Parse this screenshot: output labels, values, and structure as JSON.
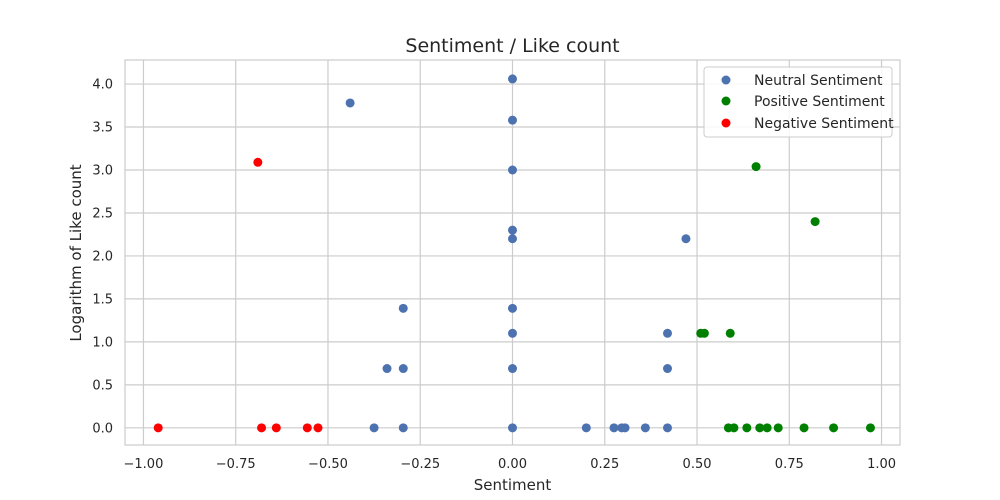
{
  "chart_data": {
    "type": "scatter",
    "title": "Sentiment / Like count",
    "xlabel": "Sentiment",
    "ylabel": "Logarithm of Like count",
    "xlim": [
      -1.05,
      1.05
    ],
    "ylim": [
      -0.2,
      4.28
    ],
    "grid": true,
    "legend_position": "top-right",
    "x_ticks": [
      -1.0,
      -0.75,
      -0.5,
      -0.25,
      0.0,
      0.25,
      0.5,
      0.75,
      1.0
    ],
    "x_tick_labels": [
      "−1.00",
      "−0.75",
      "−0.50",
      "−0.25",
      "0.00",
      "0.25",
      "0.50",
      "0.75",
      "1.00"
    ],
    "y_ticks": [
      0.0,
      0.5,
      1.0,
      1.5,
      2.0,
      2.5,
      3.0,
      3.5,
      4.0
    ],
    "y_tick_labels": [
      "0.0",
      "0.5",
      "1.0",
      "1.5",
      "2.0",
      "2.5",
      "3.0",
      "3.5",
      "4.0"
    ],
    "series": [
      {
        "name": "Neutral Sentiment",
        "color": "#4c72b0",
        "points": [
          [
            0.0,
            4.06
          ],
          [
            -0.44,
            3.78
          ],
          [
            0.0,
            3.58
          ],
          [
            0.0,
            3.0
          ],
          [
            0.0,
            2.3
          ],
          [
            0.0,
            2.2
          ],
          [
            0.47,
            2.2
          ],
          [
            -0.296,
            1.39
          ],
          [
            0.0,
            1.39
          ],
          [
            0.0,
            1.1
          ],
          [
            0.42,
            1.1
          ],
          [
            -0.34,
            0.69
          ],
          [
            -0.296,
            0.69
          ],
          [
            0.0,
            0.69
          ],
          [
            0.42,
            0.69
          ],
          [
            -0.375,
            0.0
          ],
          [
            -0.296,
            0.0
          ],
          [
            0.0,
            0.0
          ],
          [
            0.2,
            0.0
          ],
          [
            0.275,
            0.0
          ],
          [
            0.296,
            0.0
          ],
          [
            0.305,
            0.0
          ],
          [
            0.36,
            0.0
          ],
          [
            0.42,
            0.0
          ]
        ]
      },
      {
        "name": "Positive Sentiment",
        "color": "#008000",
        "points": [
          [
            0.66,
            3.04
          ],
          [
            0.82,
            2.4
          ],
          [
            0.51,
            1.1
          ],
          [
            0.52,
            1.1
          ],
          [
            0.59,
            1.1
          ],
          [
            0.585,
            0.0
          ],
          [
            0.6,
            0.0
          ],
          [
            0.635,
            0.0
          ],
          [
            0.67,
            0.0
          ],
          [
            0.69,
            0.0
          ],
          [
            0.72,
            0.0
          ],
          [
            0.79,
            0.0
          ],
          [
            0.87,
            0.0
          ],
          [
            0.97,
            0.0
          ]
        ]
      },
      {
        "name": "Negative Sentiment",
        "color": "#ff0000",
        "points": [
          [
            -0.69,
            3.09
          ],
          [
            -0.96,
            0.0
          ],
          [
            -0.68,
            0.0
          ],
          [
            -0.64,
            0.0
          ],
          [
            -0.556,
            0.0
          ],
          [
            -0.527,
            0.0
          ]
        ]
      }
    ]
  }
}
